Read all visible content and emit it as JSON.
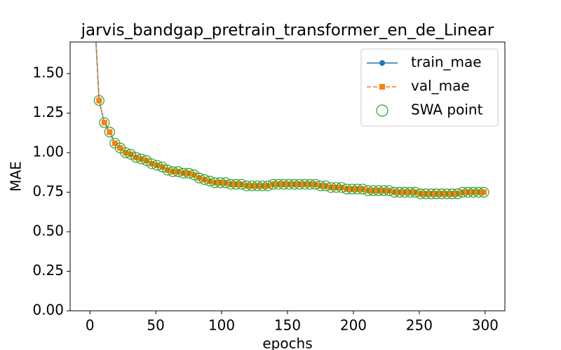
{
  "chart_data": {
    "type": "line",
    "title": "jarvis_bandgap_pretrain_transformer_en_de_Linear",
    "x_label": "epochs",
    "y_label": "MAE",
    "xlim": [
      -15,
      315
    ],
    "ylim": [
      0,
      1.7
    ],
    "xticks": [
      0,
      50,
      100,
      150,
      200,
      250,
      300
    ],
    "yticks": [
      {
        "value": 0,
        "label": "0.00"
      },
      {
        "value": 0.25,
        "label": "0.25"
      },
      {
        "value": 0.5,
        "label": "0.50"
      },
      {
        "value": 0.75,
        "label": "0.75"
      },
      {
        "value": 1,
        "label": "1.00"
      },
      {
        "value": 1.25,
        "label": "1.25"
      },
      {
        "value": 1.5,
        "label": "1.50"
      }
    ],
    "legend": "upper right",
    "x": [
      3,
      7,
      11,
      15,
      19,
      23,
      27,
      31,
      35,
      39,
      43,
      47,
      51,
      55,
      59,
      63,
      67,
      71,
      75,
      79,
      83,
      87,
      91,
      95,
      99,
      103,
      107,
      111,
      115,
      119,
      123,
      127,
      131,
      135,
      139,
      143,
      147,
      151,
      155,
      159,
      163,
      167,
      171,
      175,
      179,
      183,
      187,
      191,
      195,
      199,
      203,
      207,
      211,
      215,
      219,
      223,
      227,
      231,
      235,
      239,
      243,
      247,
      251,
      255,
      259,
      263,
      267,
      271,
      275,
      279,
      283,
      287,
      291,
      295,
      299
    ],
    "series": [
      {
        "name": "train_mae",
        "color": "#1f77b4",
        "marker": "circle",
        "linestyle": "solid",
        "values": [
          1.95,
          1.33,
          1.19,
          1.13,
          1.06,
          1.03,
          1.0,
          0.99,
          0.97,
          0.96,
          0.95,
          0.93,
          0.92,
          0.91,
          0.89,
          0.88,
          0.88,
          0.87,
          0.87,
          0.86,
          0.84,
          0.83,
          0.82,
          0.81,
          0.81,
          0.81,
          0.8,
          0.8,
          0.8,
          0.79,
          0.79,
          0.79,
          0.79,
          0.79,
          0.8,
          0.8,
          0.8,
          0.8,
          0.8,
          0.8,
          0.8,
          0.8,
          0.8,
          0.79,
          0.79,
          0.78,
          0.78,
          0.78,
          0.77,
          0.77,
          0.77,
          0.77,
          0.76,
          0.76,
          0.76,
          0.76,
          0.76,
          0.75,
          0.75,
          0.75,
          0.75,
          0.75,
          0.74,
          0.74,
          0.74,
          0.74,
          0.74,
          0.74,
          0.74,
          0.74,
          0.75,
          0.75,
          0.75,
          0.75,
          0.75
        ]
      },
      {
        "name": "val_mae",
        "color": "#ff7f0e",
        "marker": "square",
        "linestyle": "dashed",
        "values": [
          1.95,
          1.33,
          1.19,
          1.13,
          1.06,
          1.03,
          1.0,
          0.99,
          0.97,
          0.96,
          0.95,
          0.93,
          0.92,
          0.91,
          0.89,
          0.88,
          0.88,
          0.87,
          0.87,
          0.86,
          0.84,
          0.83,
          0.82,
          0.81,
          0.81,
          0.81,
          0.8,
          0.8,
          0.8,
          0.79,
          0.79,
          0.79,
          0.79,
          0.79,
          0.8,
          0.8,
          0.8,
          0.8,
          0.8,
          0.8,
          0.8,
          0.8,
          0.8,
          0.79,
          0.79,
          0.78,
          0.78,
          0.78,
          0.77,
          0.77,
          0.77,
          0.77,
          0.76,
          0.76,
          0.76,
          0.76,
          0.76,
          0.75,
          0.75,
          0.75,
          0.75,
          0.75,
          0.74,
          0.74,
          0.74,
          0.74,
          0.74,
          0.74,
          0.74,
          0.74,
          0.75,
          0.75,
          0.75,
          0.75,
          0.75
        ]
      },
      {
        "name": "SWA point",
        "color": "#2ca02c",
        "marker": "open-circle",
        "linestyle": "none",
        "values": [
          null,
          1.33,
          1.19,
          1.13,
          1.06,
          1.03,
          1.0,
          0.99,
          0.97,
          0.96,
          0.95,
          0.93,
          0.92,
          0.91,
          0.89,
          0.88,
          0.88,
          0.87,
          0.87,
          0.86,
          0.84,
          0.83,
          0.82,
          0.81,
          0.81,
          0.81,
          0.8,
          0.8,
          0.8,
          0.79,
          0.79,
          0.79,
          0.79,
          0.79,
          0.8,
          0.8,
          0.8,
          0.8,
          0.8,
          0.8,
          0.8,
          0.8,
          0.8,
          0.79,
          0.79,
          0.78,
          0.78,
          0.78,
          0.77,
          0.77,
          0.77,
          0.77,
          0.76,
          0.76,
          0.76,
          0.76,
          0.76,
          0.75,
          0.75,
          0.75,
          0.75,
          0.75,
          0.74,
          0.74,
          0.74,
          0.74,
          0.74,
          0.74,
          0.74,
          0.74,
          0.75,
          0.75,
          0.75,
          0.75,
          0.75
        ]
      }
    ]
  }
}
